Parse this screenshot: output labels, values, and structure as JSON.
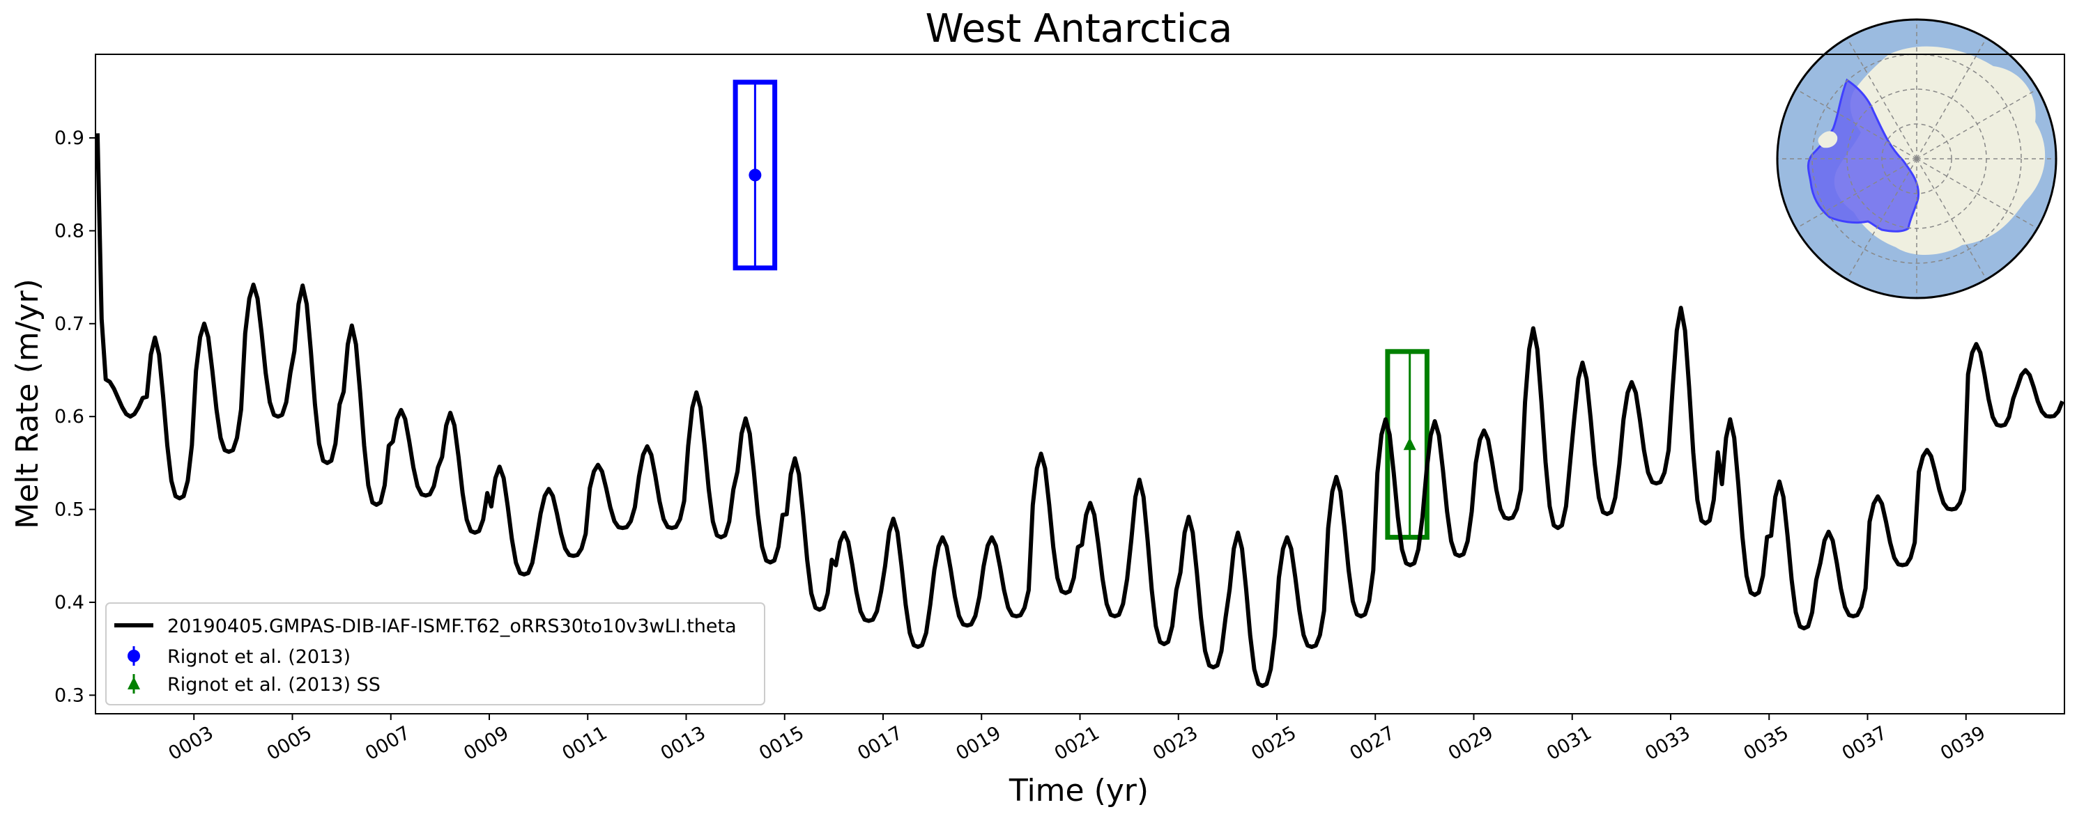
{
  "chart_data": {
    "type": "line",
    "title": "West Antarctica",
    "xlabel": "Time (yr)",
    "ylabel": "Melt Rate (m/yr)",
    "xlim": [
      1.0,
      41.0
    ],
    "ylim": [
      0.28,
      0.99
    ],
    "xticks": [
      3,
      5,
      7,
      9,
      11,
      13,
      15,
      17,
      19,
      21,
      23,
      25,
      27,
      29,
      31,
      33,
      35,
      37,
      39
    ],
    "xtick_labels": [
      "0003",
      "0005",
      "0007",
      "0009",
      "0011",
      "0013",
      "0015",
      "0017",
      "0019",
      "0021",
      "0023",
      "0025",
      "0027",
      "0029",
      "0031",
      "0033",
      "0035",
      "0037",
      "0039"
    ],
    "yticks": [
      0.3,
      0.4,
      0.5,
      0.6,
      0.7,
      0.8,
      0.9
    ],
    "ytick_labels": [
      "0.3",
      "0.4",
      "0.5",
      "0.6",
      "0.7",
      "0.8",
      "0.9"
    ],
    "legend_position": "lower-left",
    "series": [
      {
        "name": "20190405.GMPAS-DIB-IAF-ISMF.T62_oRRS30to10v3wLI.theta",
        "color": "#000000",
        "annual_max": [
          0.905,
          0.685,
          0.7,
          0.742,
          0.741,
          0.698,
          0.607,
          0.604,
          0.546,
          0.522,
          0.548,
          0.568,
          0.626,
          0.598,
          0.555,
          0.475,
          0.49,
          0.47,
          0.47,
          0.56,
          0.507,
          0.532,
          0.492,
          0.475,
          0.47,
          0.535,
          0.597,
          0.595,
          0.585,
          0.695,
          0.658,
          0.637,
          0.717,
          0.597,
          0.53,
          0.476,
          0.514,
          0.564,
          0.678,
          0.65
        ],
        "annual_min": [
          0.6,
          0.512,
          0.562,
          0.6,
          0.55,
          0.505,
          0.515,
          0.475,
          0.43,
          0.45,
          0.48,
          0.48,
          0.47,
          0.443,
          0.392,
          0.38,
          0.352,
          0.375,
          0.385,
          0.41,
          0.385,
          0.355,
          0.33,
          0.31,
          0.352,
          0.385,
          0.44,
          0.45,
          0.49,
          0.48,
          0.495,
          0.528,
          0.485,
          0.408,
          0.372,
          0.385,
          0.44,
          0.5,
          0.59,
          0.6
        ]
      }
    ],
    "observations": [
      {
        "name": "Rignot et al. (2013)",
        "color": "#0000ff",
        "marker": "circle",
        "x": 14.4,
        "y": 0.86,
        "ylow": 0.76,
        "yhigh": 0.96,
        "xlow": 14.0,
        "xhigh": 14.8
      },
      {
        "name": "Rignot et al. (2013) SS",
        "color": "#008000",
        "marker": "triangle",
        "x": 27.7,
        "y": 0.57,
        "ylow": 0.47,
        "yhigh": 0.67,
        "xlow": 27.25,
        "xhigh": 28.05
      }
    ],
    "inset_map": {
      "region": "West Antarctica",
      "ocean_color": "#9bbbe0",
      "land_color": "#efefe0",
      "region_color": "#6a6af0"
    }
  }
}
